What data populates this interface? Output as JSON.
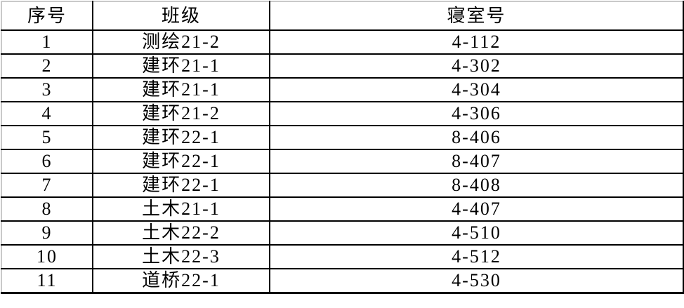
{
  "colors": {
    "background": "#ffffff",
    "text": "#000000",
    "grid_line": "#000000",
    "outer_edge_line": "#c9c9c9"
  },
  "table": {
    "columns": [
      {
        "label": "序号"
      },
      {
        "label": "班级"
      },
      {
        "label": "寝室号"
      }
    ],
    "rows": [
      {
        "index": "1",
        "class": "测绘21-2",
        "dorm": "4-112"
      },
      {
        "index": "2",
        "class": "建环21-1",
        "dorm": "4-302"
      },
      {
        "index": "3",
        "class": "建环21-1",
        "dorm": "4-304"
      },
      {
        "index": "4",
        "class": "建环21-2",
        "dorm": "4-306"
      },
      {
        "index": "5",
        "class": "建环22-1",
        "dorm": "8-406"
      },
      {
        "index": "6",
        "class": "建环22-1",
        "dorm": "8-407"
      },
      {
        "index": "7",
        "class": "建环22-1",
        "dorm": "8-408"
      },
      {
        "index": "8",
        "class": "土木21-1",
        "dorm": "4-407"
      },
      {
        "index": "9",
        "class": "土木22-2",
        "dorm": "4-510"
      },
      {
        "index": "10",
        "class": "土木22-3",
        "dorm": "4-512"
      },
      {
        "index": "11",
        "class": "道桥22-1",
        "dorm": "4-530"
      }
    ]
  }
}
